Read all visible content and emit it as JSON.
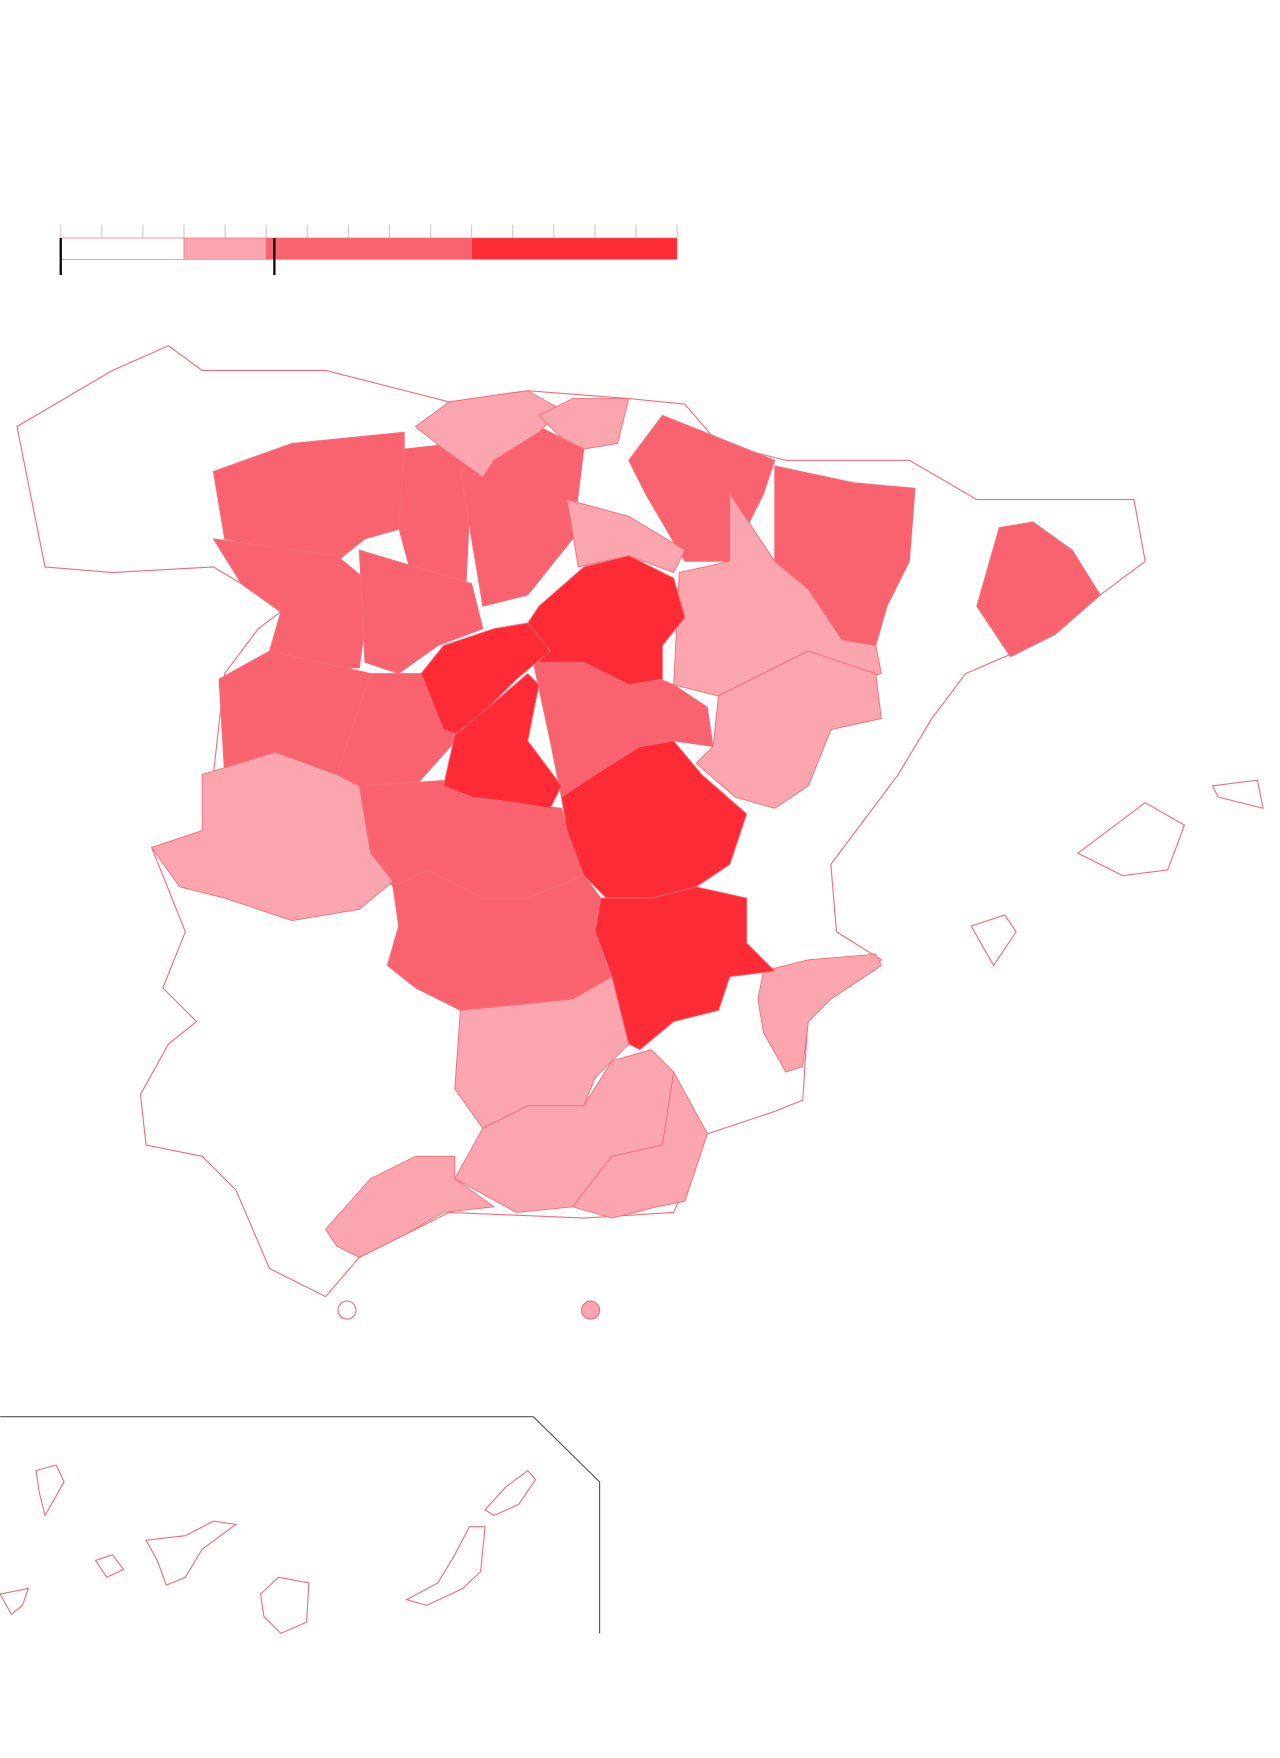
{
  "colors": {
    "class_0": "#ffffff",
    "class_1": "#fba6ae",
    "class_2": "#f9636f",
    "class_3": "#fd2b35",
    "stroke": "#f26d78",
    "marker": "#000000",
    "tick": "#cccccc",
    "inset_frame": "#555555"
  },
  "legend": {
    "tick_count": 16,
    "bins": [
      {
        "from": 0,
        "to": 3,
        "class": "class_0"
      },
      {
        "from": 3,
        "to": 5,
        "class": "class_1"
      },
      {
        "from": 5,
        "to": 10,
        "class": "class_2"
      },
      {
        "from": 10,
        "to": 15,
        "class": "class_3"
      }
    ],
    "markers": [
      0,
      5.2
    ]
  },
  "map": {
    "bottom_legend": [
      {
        "class": "class_0"
      },
      {
        "class": "class_1"
      }
    ]
  }
}
